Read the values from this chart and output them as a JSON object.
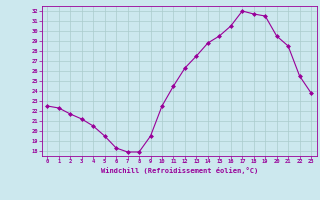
{
  "x": [
    0,
    1,
    2,
    3,
    4,
    5,
    6,
    7,
    8,
    9,
    10,
    11,
    12,
    13,
    14,
    15,
    16,
    17,
    18,
    19,
    20,
    21,
    22,
    23
  ],
  "y": [
    22.5,
    22.3,
    21.7,
    21.2,
    20.5,
    19.5,
    18.3,
    17.9,
    17.9,
    19.5,
    22.5,
    24.5,
    26.3,
    27.5,
    28.8,
    29.5,
    30.5,
    32.0,
    31.7,
    31.5,
    29.5,
    28.5,
    25.5,
    23.8
  ],
  "line_color": "#990099",
  "marker": "D",
  "markersize": 2.0,
  "bg_color": "#cce8ee",
  "grid_color": "#aacccc",
  "xlabel": "Windchill (Refroidissement éolien,°C)",
  "ylim": [
    17.5,
    32.5
  ],
  "xlim": [
    -0.5,
    23.5
  ],
  "yticks": [
    18,
    19,
    20,
    21,
    22,
    23,
    24,
    25,
    26,
    27,
    28,
    29,
    30,
    31,
    32
  ],
  "xticks": [
    0,
    1,
    2,
    3,
    4,
    5,
    6,
    7,
    8,
    9,
    10,
    11,
    12,
    13,
    14,
    15,
    16,
    17,
    18,
    19,
    20,
    21,
    22,
    23
  ]
}
